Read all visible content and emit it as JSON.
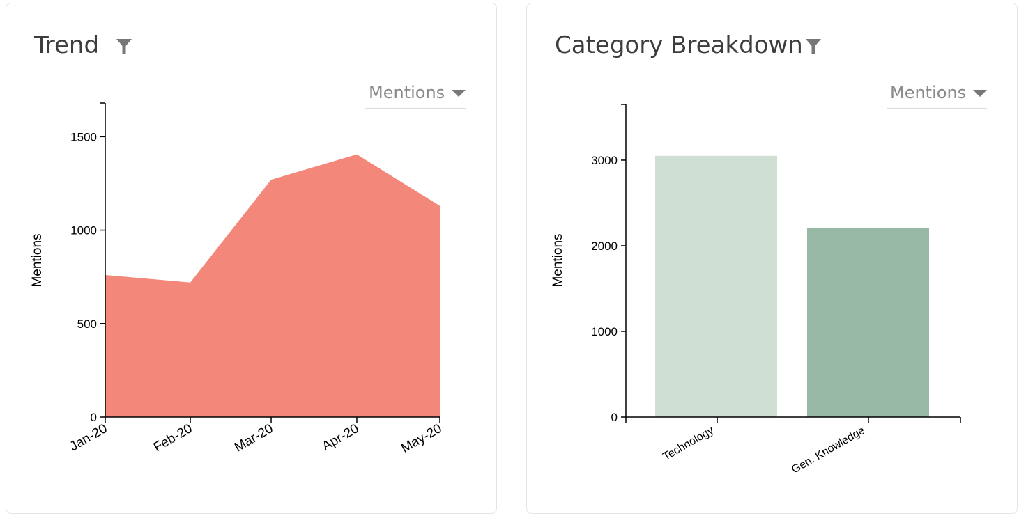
{
  "trend": {
    "title": "Trend",
    "filter_icon": "filter-icon",
    "dropdown_label": "Mentions",
    "dropdown_icon": "caret-down-icon"
  },
  "category": {
    "title": "Category Breakdown",
    "filter_icon": "filter-icon",
    "dropdown_label": "Mentions",
    "dropdown_icon": "caret-down-icon"
  },
  "colors": {
    "trend_area": "#f3877a",
    "bar_technology": "#d0dfd4",
    "bar_gen_knowledge": "#97b9a6",
    "axis": "#000000",
    "title": "#3d3d3d",
    "filter_icon": "#777777"
  },
  "chart_data": [
    {
      "type": "area",
      "x": [
        "Jan-20",
        "Feb-20",
        "Mar-20",
        "Apr-20",
        "May-20"
      ],
      "values": [
        760,
        720,
        1270,
        1405,
        1130
      ],
      "ylabel": "Mentions",
      "xlabel": "",
      "ylim": [
        0,
        1680
      ],
      "yticks": [
        0,
        500,
        1000,
        1500
      ],
      "grid": false
    },
    {
      "type": "bar",
      "categories": [
        "Technology",
        "Gen. Knowledge"
      ],
      "values": [
        3050,
        2210
      ],
      "ylabel": "Mentions",
      "xlabel": "",
      "ylim": [
        0,
        3650
      ],
      "yticks": [
        0,
        1000,
        2000,
        3000
      ],
      "grid": false
    }
  ]
}
